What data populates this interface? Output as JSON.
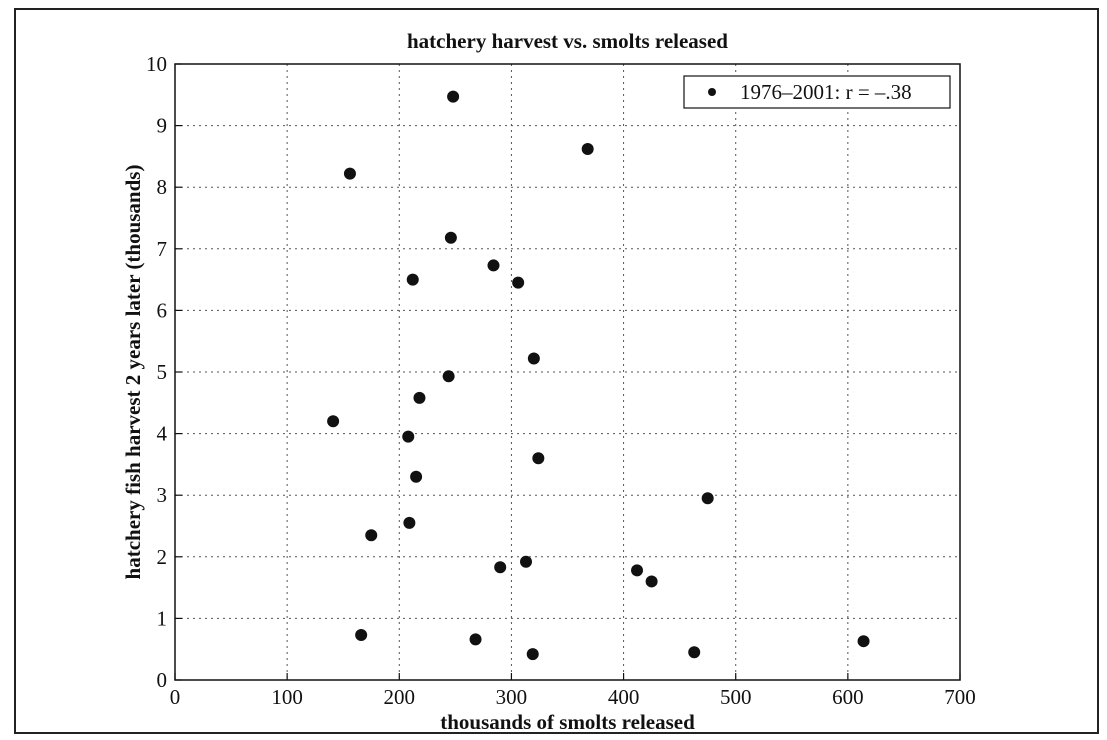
{
  "chart_data": {
    "type": "scatter",
    "title": "hatchery harvest vs. smolts released",
    "xlabel": "thousands of smolts released",
    "ylabel": "hatchery fish harvest 2 years later (thousands)",
    "xlim": [
      0,
      700
    ],
    "ylim": [
      0,
      10
    ],
    "xticks": [
      0,
      100,
      200,
      300,
      400,
      500,
      600,
      700
    ],
    "yticks": [
      0,
      1,
      2,
      3,
      4,
      5,
      6,
      7,
      8,
      9,
      10
    ],
    "grid": true,
    "legend_position": "top-right",
    "series": [
      {
        "name": "1976–2001: r = –.38",
        "color": "#111111",
        "marker": "filled-circle",
        "points": [
          {
            "x": 248,
            "y": 9.47
          },
          {
            "x": 368,
            "y": 8.62
          },
          {
            "x": 156,
            "y": 8.22
          },
          {
            "x": 246,
            "y": 7.18
          },
          {
            "x": 284,
            "y": 6.73
          },
          {
            "x": 212,
            "y": 6.5
          },
          {
            "x": 306,
            "y": 6.45
          },
          {
            "x": 320,
            "y": 5.22
          },
          {
            "x": 244,
            "y": 4.93
          },
          {
            "x": 218,
            "y": 4.58
          },
          {
            "x": 141,
            "y": 4.2
          },
          {
            "x": 208,
            "y": 3.95
          },
          {
            "x": 324,
            "y": 3.6
          },
          {
            "x": 215,
            "y": 3.3
          },
          {
            "x": 475,
            "y": 2.95
          },
          {
            "x": 209,
            "y": 2.55
          },
          {
            "x": 175,
            "y": 2.35
          },
          {
            "x": 290,
            "y": 1.83
          },
          {
            "x": 313,
            "y": 1.92
          },
          {
            "x": 412,
            "y": 1.78
          },
          {
            "x": 425,
            "y": 1.6
          },
          {
            "x": 166,
            "y": 0.73
          },
          {
            "x": 268,
            "y": 0.66
          },
          {
            "x": 319,
            "y": 0.42
          },
          {
            "x": 463,
            "y": 0.45
          },
          {
            "x": 614,
            "y": 0.63
          }
        ]
      }
    ]
  }
}
